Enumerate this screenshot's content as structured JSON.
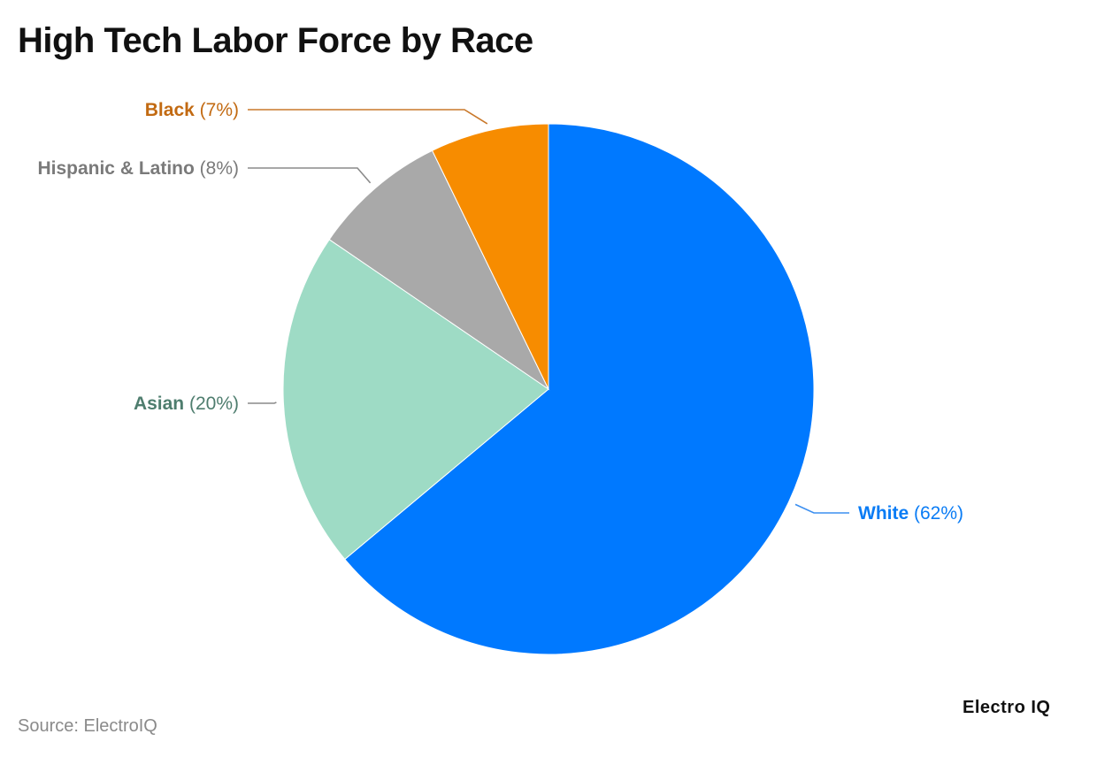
{
  "chart_data": {
    "type": "pie",
    "title": "High Tech Labor Force by Race",
    "slices": [
      {
        "label": "White",
        "value": 62,
        "value_text": "(62%)",
        "color": "#0079ff",
        "label_color": "#0a7cf5",
        "leader_color": "#3c8ff0"
      },
      {
        "label": "Asian",
        "value": 20,
        "value_text": "(20%)",
        "color": "#9edbc5",
        "label_color": "#4e7d6e",
        "leader_color": "#8a8a8a"
      },
      {
        "label": "Hispanic & Latino",
        "value": 8,
        "value_text": "(8%)",
        "color": "#a9a9a9",
        "label_color": "#7a7a7a",
        "leader_color": "#8a8a8a"
      },
      {
        "label": "Black",
        "value": 7,
        "value_text": "(7%)",
        "color": "#f78c00",
        "label_color": "#c26a12",
        "leader_color": "#c9782a"
      }
    ],
    "start": "12 o'clock",
    "direction": "clockwise",
    "legend": "none (direct labels)"
  },
  "footer": {
    "source": "Source: ElectroIQ",
    "brand": "Electro IQ"
  }
}
